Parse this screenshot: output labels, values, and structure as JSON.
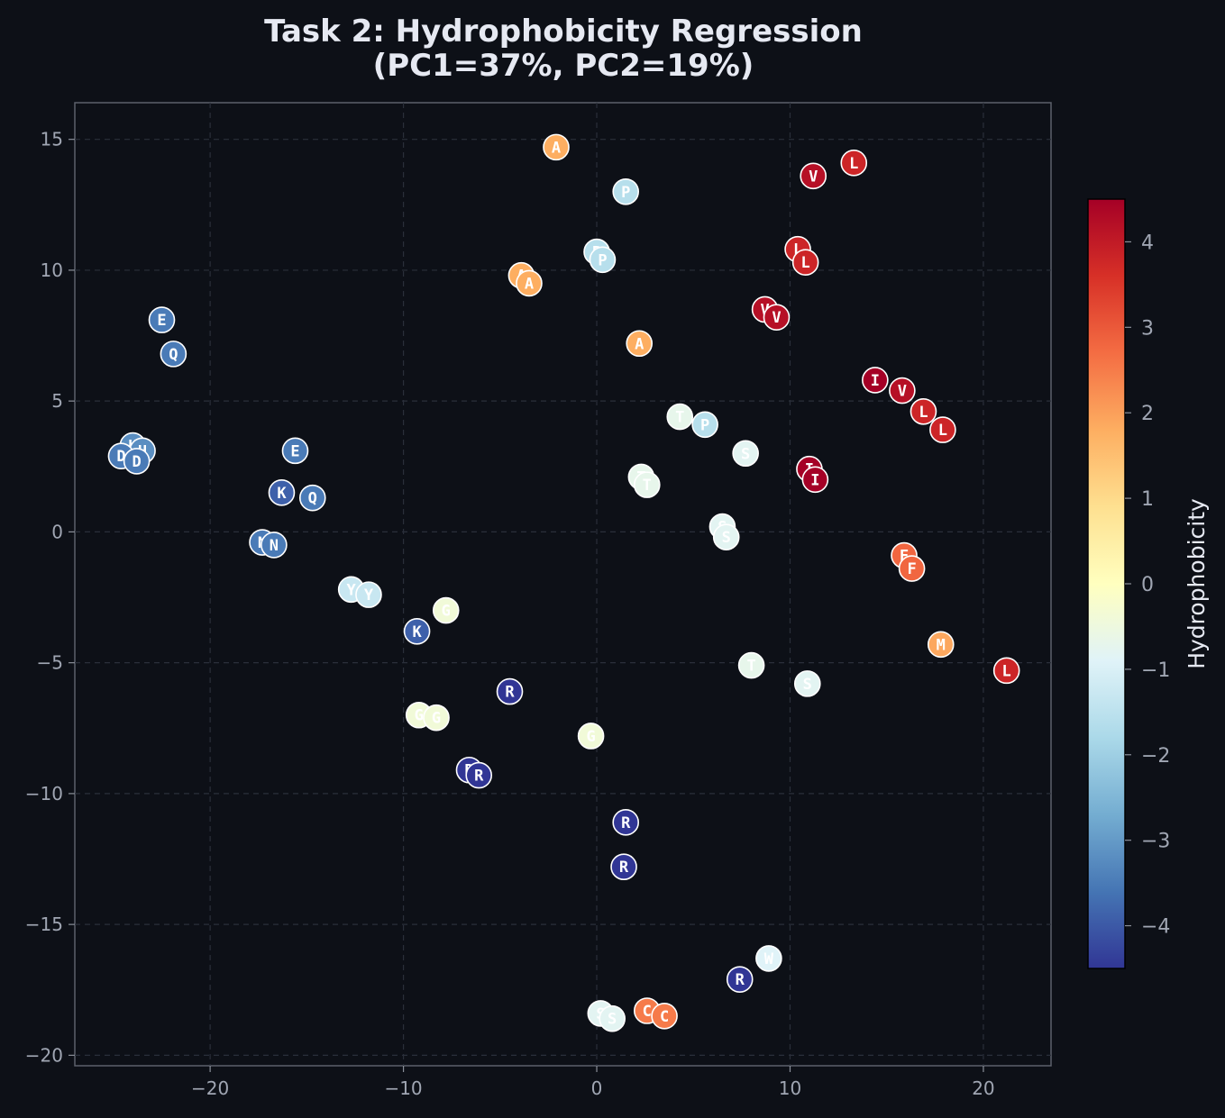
{
  "chart_data": {
    "type": "scatter",
    "title": "Task 2: Hydrophobicity Regression",
    "subtitle": "(PC1=37%, PC2=19%)",
    "xlabel": "",
    "ylabel": "",
    "xlim": [
      -27,
      23.5
    ],
    "ylim": [
      -20.4,
      16.4
    ],
    "xticks": [
      -20,
      -10,
      0,
      10,
      20
    ],
    "yticks": [
      -20,
      -15,
      -10,
      -5,
      0,
      5,
      10,
      15
    ],
    "grid": true,
    "colorbar": {
      "label": "Hydrophobicity",
      "range": [
        -4.5,
        4.5
      ],
      "ticks": [
        -4,
        -3,
        -2,
        -1,
        0,
        1,
        2,
        3,
        4
      ],
      "colormap": "RdYlBu_r"
    },
    "points": [
      {
        "label": "A",
        "x": -2.1,
        "y": 14.7,
        "value": 1.8
      },
      {
        "label": "P",
        "x": 1.5,
        "y": 13.0,
        "value": -1.6
      },
      {
        "label": "V",
        "x": 11.2,
        "y": 13.6,
        "value": 4.2
      },
      {
        "label": "L",
        "x": 13.3,
        "y": 14.1,
        "value": 3.8
      },
      {
        "label": "P",
        "x": 0.0,
        "y": 10.7,
        "value": -1.6
      },
      {
        "label": "P",
        "x": 0.3,
        "y": 10.4,
        "value": -1.6
      },
      {
        "label": "A",
        "x": -3.9,
        "y": 9.8,
        "value": 1.8
      },
      {
        "label": "A",
        "x": -3.5,
        "y": 9.5,
        "value": 1.8
      },
      {
        "label": "L",
        "x": 10.4,
        "y": 10.8,
        "value": 3.8
      },
      {
        "label": "L",
        "x": 10.8,
        "y": 10.3,
        "value": 3.8
      },
      {
        "label": "E",
        "x": -22.5,
        "y": 8.1,
        "value": -3.5
      },
      {
        "label": "Q",
        "x": -21.9,
        "y": 6.8,
        "value": -3.5
      },
      {
        "label": "V",
        "x": 8.7,
        "y": 8.5,
        "value": 4.2
      },
      {
        "label": "V",
        "x": 9.3,
        "y": 8.2,
        "value": 4.2
      },
      {
        "label": "A",
        "x": 2.2,
        "y": 7.2,
        "value": 1.8
      },
      {
        "label": "I",
        "x": 14.4,
        "y": 5.8,
        "value": 4.5
      },
      {
        "label": "V",
        "x": 15.8,
        "y": 5.4,
        "value": 4.2
      },
      {
        "label": "L",
        "x": 16.9,
        "y": 4.6,
        "value": 3.8
      },
      {
        "label": "L",
        "x": 17.9,
        "y": 3.9,
        "value": 3.8
      },
      {
        "label": "T",
        "x": 4.3,
        "y": 4.4,
        "value": -0.7
      },
      {
        "label": "P",
        "x": 5.6,
        "y": 4.1,
        "value": -1.6
      },
      {
        "label": "S",
        "x": 7.7,
        "y": 3.0,
        "value": -0.8
      },
      {
        "label": "H",
        "x": -24.0,
        "y": 3.3,
        "value": -3.2
      },
      {
        "label": "H",
        "x": -23.5,
        "y": 3.1,
        "value": -3.2
      },
      {
        "label": "D",
        "x": -24.6,
        "y": 2.9,
        "value": -3.5
      },
      {
        "label": "D",
        "x": -23.8,
        "y": 2.7,
        "value": -3.5
      },
      {
        "label": "E",
        "x": -15.6,
        "y": 3.1,
        "value": -3.5
      },
      {
        "label": "I",
        "x": 11.0,
        "y": 2.4,
        "value": 4.5
      },
      {
        "label": "I",
        "x": 11.3,
        "y": 2.0,
        "value": 4.5
      },
      {
        "label": "T",
        "x": 2.3,
        "y": 2.1,
        "value": -0.7
      },
      {
        "label": "T",
        "x": 2.6,
        "y": 1.8,
        "value": -0.7
      },
      {
        "label": "K",
        "x": -16.3,
        "y": 1.5,
        "value": -3.9
      },
      {
        "label": "Q",
        "x": -14.7,
        "y": 1.3,
        "value": -3.5
      },
      {
        "label": "S",
        "x": 6.5,
        "y": 0.2,
        "value": -0.8
      },
      {
        "label": "S",
        "x": 6.7,
        "y": -0.2,
        "value": -0.8
      },
      {
        "label": "N",
        "x": -17.3,
        "y": -0.4,
        "value": -3.5
      },
      {
        "label": "N",
        "x": -16.7,
        "y": -0.5,
        "value": -3.5
      },
      {
        "label": "F",
        "x": 15.9,
        "y": -0.9,
        "value": 2.8
      },
      {
        "label": "F",
        "x": 16.3,
        "y": -1.4,
        "value": 2.8
      },
      {
        "label": "Y",
        "x": -12.7,
        "y": -2.2,
        "value": -1.3
      },
      {
        "label": "Y",
        "x": -11.8,
        "y": -2.4,
        "value": -1.3
      },
      {
        "label": "G",
        "x": -7.8,
        "y": -3.0,
        "value": -0.4
      },
      {
        "label": "K",
        "x": -9.3,
        "y": -3.8,
        "value": -3.9
      },
      {
        "label": "M",
        "x": 17.8,
        "y": -4.3,
        "value": 1.9
      },
      {
        "label": "L",
        "x": 21.2,
        "y": -5.3,
        "value": 3.8
      },
      {
        "label": "T",
        "x": 8.0,
        "y": -5.1,
        "value": -0.7
      },
      {
        "label": "S",
        "x": 10.9,
        "y": -5.8,
        "value": -0.8
      },
      {
        "label": "R",
        "x": -4.5,
        "y": -6.1,
        "value": -4.5
      },
      {
        "label": "G",
        "x": -9.2,
        "y": -7.0,
        "value": -0.4
      },
      {
        "label": "G",
        "x": -8.3,
        "y": -7.1,
        "value": -0.4
      },
      {
        "label": "G",
        "x": -0.3,
        "y": -7.8,
        "value": -0.4
      },
      {
        "label": "R",
        "x": -6.6,
        "y": -9.1,
        "value": -4.5
      },
      {
        "label": "R",
        "x": -6.1,
        "y": -9.3,
        "value": -4.5
      },
      {
        "label": "R",
        "x": 1.5,
        "y": -11.1,
        "value": -4.5
      },
      {
        "label": "R",
        "x": 1.4,
        "y": -12.8,
        "value": -4.5
      },
      {
        "label": "W",
        "x": 8.9,
        "y": -16.3,
        "value": -0.9
      },
      {
        "label": "R",
        "x": 7.4,
        "y": -17.1,
        "value": -4.5
      },
      {
        "label": "S",
        "x": 0.2,
        "y": -18.4,
        "value": -0.8
      },
      {
        "label": "S",
        "x": 0.8,
        "y": -18.6,
        "value": -0.8
      },
      {
        "label": "C",
        "x": 2.6,
        "y": -18.3,
        "value": 2.5
      },
      {
        "label": "C",
        "x": 3.5,
        "y": -18.5,
        "value": 2.5
      }
    ]
  }
}
